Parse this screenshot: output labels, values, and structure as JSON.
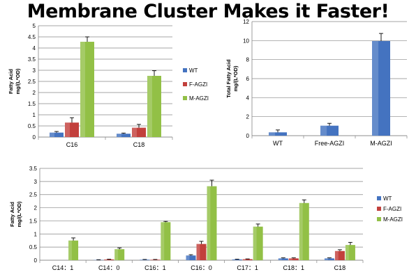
{
  "title": "Membrane Cluster Makes it Faster!",
  "colors": {
    "wt": "#4473C0",
    "fagzi": "#C2403C",
    "magzi": "#92C046",
    "grid": "#868686"
  },
  "chart_data": [
    {
      "type": "bar",
      "ylabel_lines": [
        "Fatty Acid",
        "mg/(L*OD)"
      ],
      "ylim": [
        0,
        5
      ],
      "ytick_step": 0.5,
      "yticks": [
        "0",
        "0.5",
        "1",
        "1.5",
        "2",
        "2.5",
        "3",
        "3.5",
        "4",
        "4.5",
        "5"
      ],
      "grid": true,
      "legend_position": "right",
      "categories": [
        "C16",
        "C18"
      ],
      "series": [
        {
          "name": "WT",
          "colorKey": "wt",
          "values": [
            0.2,
            0.15
          ],
          "errors": [
            0.05,
            0.03
          ]
        },
        {
          "name": "F-AGZI",
          "colorKey": "fagzi",
          "values": [
            0.65,
            0.42
          ],
          "errors": [
            0.22,
            0.15
          ]
        },
        {
          "name": "M-AGZI",
          "colorKey": "magzi",
          "values": [
            4.28,
            2.75
          ],
          "errors": [
            0.22,
            0.23
          ]
        }
      ]
    },
    {
      "type": "bar",
      "ylabel_lines": [
        "Total Fatty Acid",
        "mg/(L*OD)"
      ],
      "ylim": [
        0,
        12
      ],
      "ytick_step": 2,
      "yticks": [
        "0",
        "2",
        "4",
        "6",
        "8",
        "10",
        "12"
      ],
      "grid": true,
      "legend_position": "none",
      "categories": [
        "WT",
        "Free-AGZI",
        "M-AGZI"
      ],
      "series": [
        {
          "name": "",
          "colorKey": "wt",
          "values": [
            0.35,
            1.05,
            9.95
          ],
          "errors": [
            0.25,
            0.25,
            0.8
          ]
        }
      ]
    },
    {
      "type": "bar",
      "ylabel_lines": [
        "Fatty Acid",
        "mg/(L*OD)"
      ],
      "ylim": [
        0,
        3.5
      ],
      "ytick_step": 0.5,
      "yticks": [
        "0",
        "0.5",
        "1",
        "1.5",
        "2",
        "2.5",
        "3",
        "3.5"
      ],
      "grid": true,
      "legend_position": "right",
      "categories": [
        "C14：1",
        "C14：0",
        "C16：1",
        "C16：0",
        "C17：1",
        "C18：1",
        "C18"
      ],
      "series": [
        {
          "name": "WT",
          "colorKey": "wt",
          "values": [
            0,
            0.01,
            0.02,
            0.18,
            0.03,
            0.07,
            0.07
          ],
          "errors": [
            0,
            0.01,
            0.01,
            0.03,
            0.01,
            0.02,
            0.02
          ]
        },
        {
          "name": "F-AGZI",
          "colorKey": "fagzi",
          "values": [
            0,
            0.03,
            0.02,
            0.62,
            0.04,
            0.07,
            0.35
          ],
          "errors": [
            0,
            0.01,
            0.01,
            0.1,
            0.01,
            0.02,
            0.05
          ]
        },
        {
          "name": "M-AGZI",
          "colorKey": "magzi",
          "values": [
            0.75,
            0.42,
            1.45,
            2.82,
            1.28,
            2.18,
            0.58
          ],
          "errors": [
            0.1,
            0.05,
            0.03,
            0.23,
            0.1,
            0.12,
            0.1
          ]
        }
      ]
    }
  ]
}
